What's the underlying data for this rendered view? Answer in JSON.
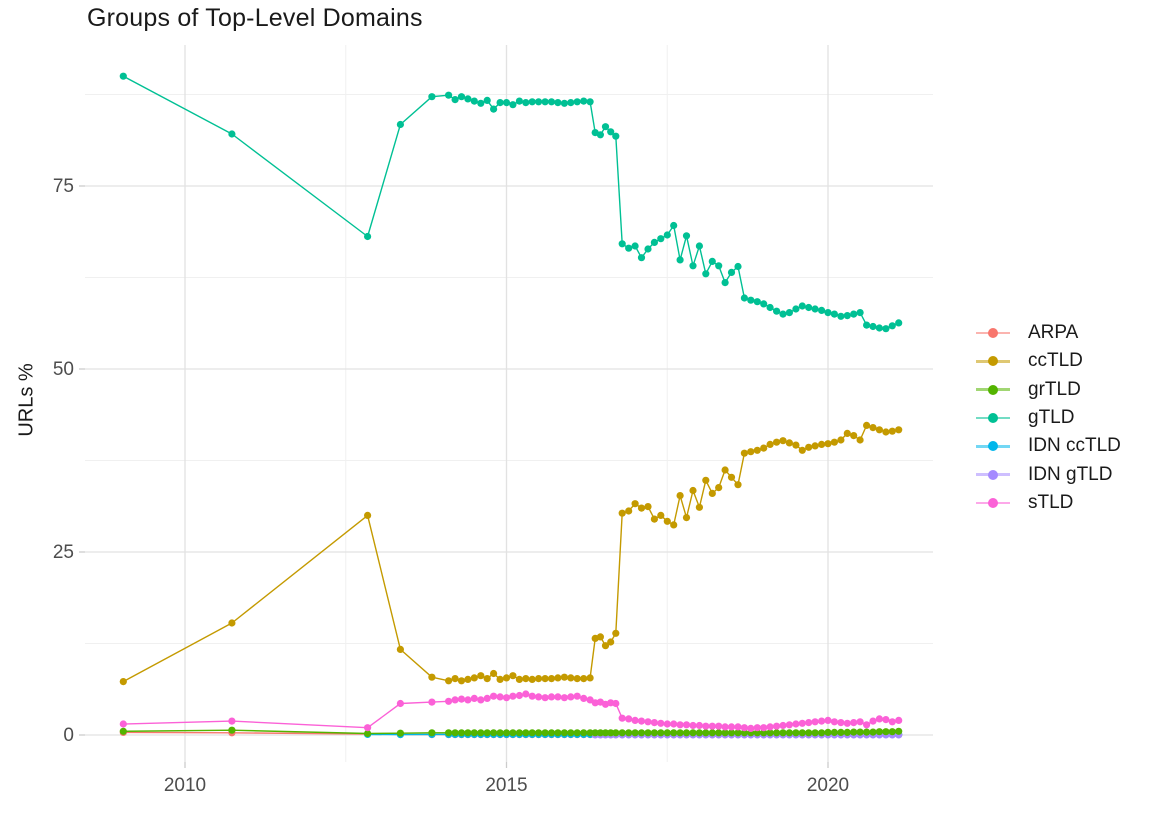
{
  "title": "Groups of Top-Level Domains",
  "axes": {
    "y_label": "URLs %",
    "x_tick_labels": [
      "2010",
      "2015",
      "2020"
    ],
    "y_tick_labels": [
      "0",
      "25",
      "50",
      "75"
    ],
    "tick_text_color": "#4d4d4d",
    "grid_major_color": "#e2e2e2",
    "grid_minor_color": "#f0f0f0",
    "tick_mark_color": "#cccccc"
  },
  "legend": {
    "items": [
      {
        "label": "ARPA",
        "color": "#F8766D"
      },
      {
        "label": "ccTLD",
        "color": "#C49A00"
      },
      {
        "label": "grTLD",
        "color": "#53B400"
      },
      {
        "label": "gTLD",
        "color": "#00C094"
      },
      {
        "label": "IDN ccTLD",
        "color": "#00B6EB"
      },
      {
        "label": "IDN gTLD",
        "color": "#A58AFF"
      },
      {
        "label": "sTLD",
        "color": "#FB61D7"
      }
    ]
  },
  "chart_data": {
    "type": "line",
    "title": "Groups of Top-Level Domains",
    "xlabel": "",
    "ylabel": "URLs %",
    "x_domain": [
      2008.44,
      2021.63
    ],
    "y_domain": [
      -3.7,
      94.3
    ],
    "x_major": [
      2010,
      2015,
      2020
    ],
    "x_minor": [
      2012.5,
      2017.5
    ],
    "y_major": [
      0,
      25,
      50,
      75
    ],
    "y_minor": [
      12.5,
      37.5,
      62.5,
      87.5
    ],
    "x_tick_labels": [
      "2010",
      "2015",
      "2020"
    ],
    "y_tick_labels": [
      "0",
      "25",
      "50",
      "75"
    ],
    "legend_position": "right",
    "grids": {
      "A": [
        2009.04,
        2010.73,
        2012.84,
        2013.35
      ],
      "A2": [
        2012.84,
        2013.35
      ],
      "B": [
        2013.84,
        2014.1,
        2014.2,
        2014.3,
        2014.4,
        2014.5,
        2014.6,
        2014.7,
        2014.8,
        2014.9,
        2015.0,
        2015.1,
        2015.2,
        2015.3,
        2015.4,
        2015.5,
        2015.6,
        2015.7,
        2015.8,
        2015.9,
        2016.0,
        2016.1,
        2016.2,
        2016.3
      ],
      "C": [
        2016.38,
        2016.46,
        2016.54,
        2016.62,
        2016.7
      ],
      "D": [
        2016.8,
        2016.9,
        2017.0,
        2017.1,
        2017.2,
        2017.3,
        2017.4,
        2017.5,
        2017.6,
        2017.7,
        2017.8,
        2017.9,
        2018.0,
        2018.1,
        2018.2,
        2018.3,
        2018.4,
        2018.5,
        2018.6,
        2018.7,
        2018.8,
        2018.9,
        2019.0,
        2019.1,
        2019.2,
        2019.3,
        2019.4,
        2019.5,
        2019.6,
        2019.7,
        2019.8,
        2019.9,
        2020.0,
        2020.1,
        2020.2,
        2020.3,
        2020.4,
        2020.5,
        2020.6,
        2020.7,
        2020.8,
        2020.9,
        2021.0,
        2021.1
      ]
    },
    "draw_order": [
      "ARPA",
      "IDN ccTLD",
      "IDN gTLD",
      "grTLD",
      "ccTLD",
      "gTLD",
      "sTLD"
    ],
    "series": [
      {
        "name": "ARPA",
        "color": "#F8766D",
        "segments": [
          "A",
          "B",
          "C",
          "D"
        ],
        "y": {
          "A": [
            0.35,
            0.3,
            0.12,
            0.08
          ],
          "B": 0.05,
          "C": 0.05,
          "D": 0.05
        }
      },
      {
        "name": "ccTLD",
        "color": "#C49A00",
        "segments": [
          "A",
          "B",
          "C",
          "D"
        ],
        "y": {
          "A": [
            7.3,
            15.3,
            30.0,
            11.7
          ],
          "B": [
            7.9,
            7.4,
            7.7,
            7.4,
            7.6,
            7.8,
            8.1,
            7.7,
            8.4,
            7.6,
            7.8,
            8.1,
            7.6,
            7.7,
            7.6,
            7.7,
            7.7,
            7.7,
            7.8,
            7.9,
            7.8,
            7.7,
            7.7,
            7.8
          ],
          "C": [
            13.2,
            13.4,
            12.2,
            12.7,
            13.9
          ],
          "D": [
            30.3,
            30.6,
            31.6,
            31.0,
            31.2,
            29.5,
            30.0,
            29.2,
            28.7,
            32.7,
            29.7,
            33.4,
            31.1,
            34.8,
            33.0,
            33.8,
            36.2,
            35.2,
            34.2,
            38.5,
            38.7,
            38.9,
            39.2,
            39.7,
            40.0,
            40.2,
            39.9,
            39.6,
            38.9,
            39.3,
            39.5,
            39.7,
            39.8,
            40.0,
            40.3,
            41.2,
            40.9,
            40.3,
            42.3,
            42.0,
            41.7,
            41.4,
            41.5,
            41.7
          ]
        }
      },
      {
        "name": "grTLD",
        "color": "#53B400",
        "segments": [
          "A",
          "B",
          "C",
          "D"
        ],
        "y": {
          "A": [
            0.5,
            0.65,
            0.2,
            0.25
          ],
          "B": 0.3,
          "C": 0.3,
          "D": [
            0.3,
            0.3,
            0.3,
            0.3,
            0.3,
            0.3,
            0.3,
            0.3,
            0.3,
            0.3,
            0.3,
            0.3,
            0.3,
            0.3,
            0.3,
            0.3,
            0.3,
            0.3,
            0.3,
            0.3,
            0.3,
            0.3,
            0.3,
            0.3,
            0.3,
            0.3,
            0.3,
            0.3,
            0.3,
            0.3,
            0.3,
            0.3,
            0.35,
            0.35,
            0.35,
            0.35,
            0.4,
            0.4,
            0.4,
            0.4,
            0.45,
            0.45,
            0.45,
            0.5
          ]
        }
      },
      {
        "name": "gTLD",
        "color": "#00C094",
        "segments": [
          "A",
          "B",
          "C",
          "D"
        ],
        "y": {
          "A": [
            90.0,
            82.1,
            68.1,
            83.4
          ],
          "B": [
            87.2,
            87.4,
            86.8,
            87.2,
            86.9,
            86.6,
            86.3,
            86.7,
            85.5,
            86.4,
            86.4,
            86.1,
            86.6,
            86.4,
            86.5,
            86.5,
            86.5,
            86.5,
            86.4,
            86.3,
            86.4,
            86.5,
            86.6,
            86.5
          ],
          "C": [
            82.3,
            82.0,
            83.1,
            82.4,
            81.8
          ],
          "D": [
            67.1,
            66.5,
            66.8,
            65.2,
            66.4,
            67.3,
            67.8,
            68.3,
            69.6,
            64.9,
            68.2,
            64.1,
            66.8,
            63.0,
            64.7,
            64.1,
            61.8,
            63.2,
            64.0,
            59.7,
            59.4,
            59.2,
            58.9,
            58.4,
            57.9,
            57.5,
            57.7,
            58.2,
            58.6,
            58.4,
            58.2,
            58.0,
            57.7,
            57.5,
            57.2,
            57.3,
            57.5,
            57.7,
            56.0,
            55.8,
            55.6,
            55.5,
            55.9,
            56.3
          ]
        }
      },
      {
        "name": "IDN ccTLD",
        "color": "#00B6EB",
        "segments": [
          "A2",
          "B",
          "C",
          "D"
        ],
        "y": {
          "A2": [
            0.08,
            0.06
          ],
          "B": 0.08,
          "C": 0.08,
          "D": 0.08
        }
      },
      {
        "name": "IDN gTLD",
        "color": "#A58AFF",
        "segments": [
          "C",
          "D"
        ],
        "y": {
          "C": 0.02,
          "D": 0.02
        }
      },
      {
        "name": "sTLD",
        "color": "#FB61D7",
        "segments": [
          "A",
          "B",
          "C",
          "D"
        ],
        "y": {
          "A": [
            1.5,
            1.9,
            1.0,
            4.3
          ],
          "B": [
            4.5,
            4.6,
            4.8,
            4.9,
            4.8,
            5.0,
            4.8,
            5.0,
            5.3,
            5.2,
            5.1,
            5.3,
            5.4,
            5.6,
            5.3,
            5.2,
            5.1,
            5.2,
            5.2,
            5.1,
            5.2,
            5.3,
            5.0,
            4.8
          ],
          "C": [
            4.4,
            4.5,
            4.2,
            4.4,
            4.3
          ],
          "D": [
            2.3,
            2.2,
            2.0,
            1.9,
            1.8,
            1.7,
            1.6,
            1.5,
            1.5,
            1.4,
            1.4,
            1.3,
            1.3,
            1.2,
            1.2,
            1.2,
            1.1,
            1.1,
            1.1,
            1.0,
            0.9,
            1.0,
            1.0,
            1.1,
            1.2,
            1.3,
            1.4,
            1.5,
            1.6,
            1.7,
            1.8,
            1.9,
            2.0,
            1.8,
            1.7,
            1.6,
            1.7,
            1.8,
            1.4,
            1.9,
            2.2,
            2.1,
            1.8,
            2.0
          ]
        }
      }
    ]
  }
}
